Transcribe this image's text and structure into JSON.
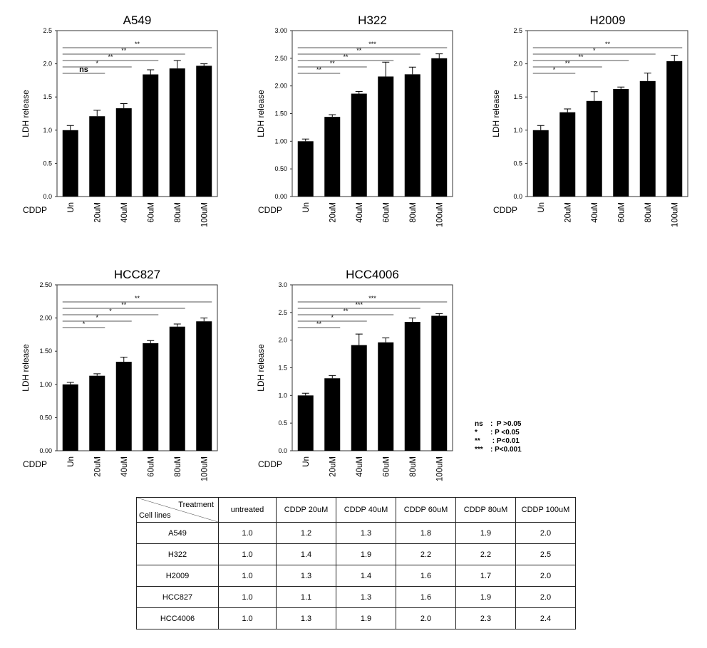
{
  "charts": [
    {
      "id": "a549",
      "title": "A549",
      "ylabel": "LDH release",
      "cddp_label": "CDDP",
      "categories": [
        "Un",
        "20uM",
        "40uM",
        "60uM",
        "80uM",
        "100uM"
      ],
      "values": [
        1.0,
        1.21,
        1.33,
        1.84,
        1.93,
        1.97
      ],
      "errors": [
        0.07,
        0.09,
        0.07,
        0.07,
        0.12,
        0.03
      ],
      "ylim": [
        0,
        2.5
      ],
      "yticks": [
        "0.0",
        "0.5",
        "1.0",
        "1.5",
        "2.0",
        "2.5"
      ],
      "significance": [
        {
          "to": 1,
          "label": "ns"
        },
        {
          "to": 2,
          "label": "*"
        },
        {
          "to": 3,
          "label": "**"
        },
        {
          "to": 4,
          "label": "**"
        },
        {
          "to": 5,
          "label": "**"
        }
      ]
    },
    {
      "id": "h322",
      "title": "H322",
      "ylabel": "LDH release",
      "cddp_label": "CDDP",
      "categories": [
        "Un",
        "20uM",
        "40uM",
        "60uM",
        "80uM",
        "100uM"
      ],
      "values": [
        1.0,
        1.44,
        1.86,
        2.17,
        2.21,
        2.5
      ],
      "errors": [
        0.04,
        0.04,
        0.04,
        0.26,
        0.13,
        0.08
      ],
      "ylim": [
        0,
        3
      ],
      "yticks": [
        "0.00",
        "0.50",
        "1.00",
        "1.50",
        "2.00",
        "2.50",
        "3.00"
      ],
      "significance": [
        {
          "to": 1,
          "label": "**"
        },
        {
          "to": 2,
          "label": "**"
        },
        {
          "to": 3,
          "label": "**"
        },
        {
          "to": 4,
          "label": "**"
        },
        {
          "to": 5,
          "label": "***"
        }
      ]
    },
    {
      "id": "h2009",
      "title": "H2009",
      "ylabel": "LDH release",
      "cddp_label": "CDDP",
      "categories": [
        "Un",
        "20uM",
        "40uM",
        "60uM",
        "80uM",
        "100uM"
      ],
      "values": [
        1.0,
        1.27,
        1.44,
        1.62,
        1.74,
        2.04
      ],
      "errors": [
        0.07,
        0.05,
        0.14,
        0.03,
        0.12,
        0.09
      ],
      "ylim": [
        0,
        2.5
      ],
      "yticks": [
        "0.0",
        "0.5",
        "1.0",
        "1.5",
        "2.0",
        "2.5"
      ],
      "significance": [
        {
          "to": 1,
          "label": "*"
        },
        {
          "to": 2,
          "label": "**"
        },
        {
          "to": 3,
          "label": "**"
        },
        {
          "to": 4,
          "label": "*"
        },
        {
          "to": 5,
          "label": "**"
        }
      ]
    },
    {
      "id": "hcc827",
      "title": "HCC827",
      "ylabel": "LDH release",
      "cddp_label": "CDDP",
      "categories": [
        "Un",
        "20uM",
        "40uM",
        "60uM",
        "80uM",
        "100uM"
      ],
      "values": [
        1.0,
        1.13,
        1.34,
        1.62,
        1.87,
        1.95
      ],
      "errors": [
        0.03,
        0.03,
        0.07,
        0.04,
        0.04,
        0.05
      ],
      "ylim": [
        0,
        2.5
      ],
      "yticks": [
        "0.00",
        "0.50",
        "1.00",
        "1.50",
        "2.00",
        "2.50"
      ],
      "significance": [
        {
          "to": 1,
          "label": "*"
        },
        {
          "to": 2,
          "label": "*"
        },
        {
          "to": 3,
          "label": "*"
        },
        {
          "to": 4,
          "label": "**"
        },
        {
          "to": 5,
          "label": "**"
        }
      ]
    },
    {
      "id": "hcc4006",
      "title": "HCC4006",
      "ylabel": "LDH release",
      "cddp_label": "CDDP",
      "categories": [
        "Un",
        "20uM",
        "40uM",
        "60uM",
        "80uM",
        "100uM"
      ],
      "values": [
        1.0,
        1.31,
        1.91,
        1.96,
        2.33,
        2.44
      ],
      "errors": [
        0.04,
        0.05,
        0.2,
        0.08,
        0.07,
        0.04
      ],
      "ylim": [
        0,
        3
      ],
      "yticks": [
        "0.0",
        "0.5",
        "1.0",
        "1.5",
        "2.0",
        "2.5",
        "3.0"
      ],
      "significance": [
        {
          "to": 1,
          "label": "**"
        },
        {
          "to": 2,
          "label": "*"
        },
        {
          "to": 3,
          "label": "**"
        },
        {
          "to": 4,
          "label": "***"
        },
        {
          "to": 5,
          "label": "***"
        }
      ]
    }
  ],
  "legend": [
    {
      "symbol": "ns",
      "text": ":  P >0.05"
    },
    {
      "symbol": "*",
      "text": ": P <0.05"
    },
    {
      "symbol": "**",
      "text": " : P<0.01"
    },
    {
      "symbol": "***",
      "text": ": P<0.001"
    }
  ],
  "table": {
    "corner_top": "Treatment",
    "corner_bottom": "Cell lines",
    "headers": [
      "untreated",
      "CDDP 20uM",
      "CDDP 40uM",
      "CDDP 60uM",
      "CDDP 80uM",
      "CDDP 100uM"
    ],
    "rows": [
      {
        "cell_line": "A549",
        "values": [
          "1.0",
          "1.2",
          "1.3",
          "1.8",
          "1.9",
          "2.0"
        ]
      },
      {
        "cell_line": "H322",
        "values": [
          "1.0",
          "1.4",
          "1.9",
          "2.2",
          "2.2",
          "2.5"
        ]
      },
      {
        "cell_line": "H2009",
        "values": [
          "1.0",
          "1.3",
          "1.4",
          "1.6",
          "1.7",
          "2.0"
        ]
      },
      {
        "cell_line": "HCC827",
        "values": [
          "1.0",
          "1.1",
          "1.3",
          "1.6",
          "1.9",
          "2.0"
        ]
      },
      {
        "cell_line": "HCC4006",
        "values": [
          "1.0",
          "1.3",
          "1.9",
          "2.0",
          "2.3",
          "2.4"
        ]
      }
    ]
  },
  "colors": {
    "bar": "#000000",
    "frame": "#333333",
    "sig_line": "#555555"
  }
}
